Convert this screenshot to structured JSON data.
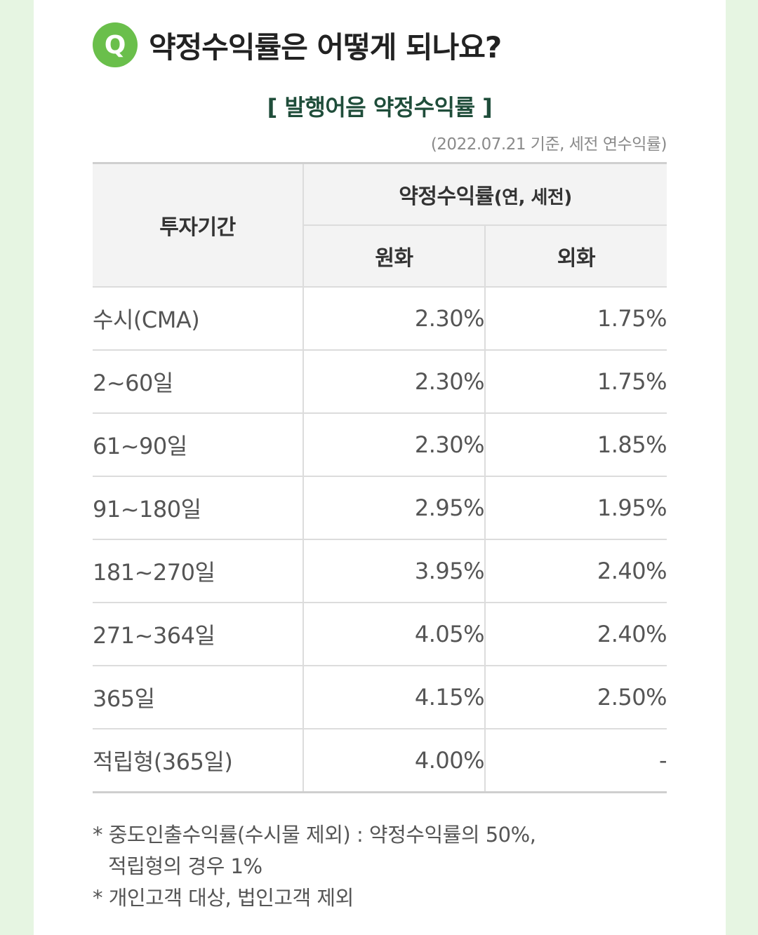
{
  "question": {
    "badge": "Q",
    "title": "약정수익률은 어떻게 되나요?"
  },
  "table_title": "[ 발행어음 약정수익률 ]",
  "basis_note": "(2022.07.21 기준, 세전 연수익률)",
  "table": {
    "header_period": "투자기간",
    "header_group": "약정수익률",
    "header_group_sub": "(연, 세전)",
    "header_krw": "원화",
    "header_fx": "외화",
    "rows": [
      {
        "period": "수시(CMA)",
        "krw": "2.30%",
        "fx": "1.75%"
      },
      {
        "period": "2~60일",
        "krw": "2.30%",
        "fx": "1.75%"
      },
      {
        "period": "61~90일",
        "krw": "2.30%",
        "fx": "1.85%"
      },
      {
        "period": "91~180일",
        "krw": "2.95%",
        "fx": "1.95%"
      },
      {
        "period": "181~270일",
        "krw": "3.95%",
        "fx": "2.40%"
      },
      {
        "period": "271~364일",
        "krw": "4.05%",
        "fx": "2.40%"
      },
      {
        "period": "365일",
        "krw": "4.15%",
        "fx": "2.50%"
      },
      {
        "period": "적립형(365일)",
        "krw": "4.00%",
        "fx": "-"
      }
    ]
  },
  "notes": {
    "line1": "* 중도인출수익률(수시물 제외) : 약정수익률의 50%,",
    "line2": "적립형의 경우 1%",
    "line3": "* 개인고객 대상, 법인고객 제외"
  },
  "colors": {
    "background": "#e6f5e2",
    "badge": "#6abf4b",
    "table_title": "#1f4d3a"
  }
}
